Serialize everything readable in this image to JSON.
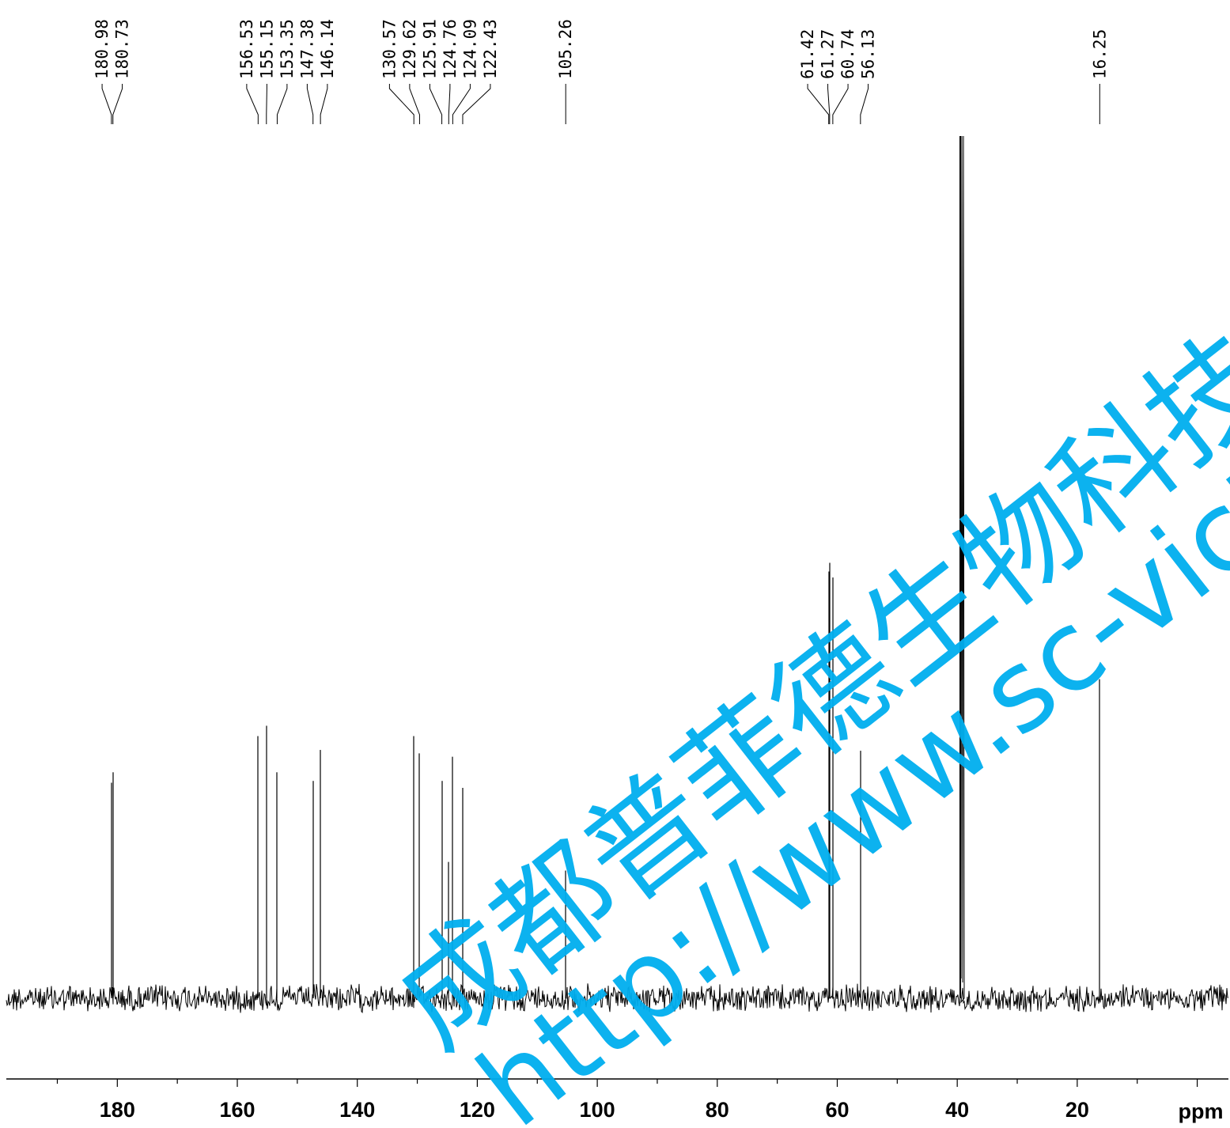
{
  "chart_data": {
    "type": "line",
    "title": "",
    "xlabel": "ppm",
    "ylabel": "",
    "xlim": [
      198.5,
      -5.2
    ],
    "x_major_ticks": [
      180,
      160,
      140,
      120,
      100,
      80,
      60,
      40,
      20
    ],
    "x_minor_step": 10,
    "grid": false,
    "peak_labels": [
      "180.98",
      "180.73",
      "156.53",
      "155.15",
      "153.35",
      "147.38",
      "146.14",
      "130.57",
      "129.62",
      "125.91",
      "124.76",
      "124.09",
      "122.43",
      "105.26",
      "61.42",
      "61.27",
      "60.74",
      "56.13",
      "16.25"
    ],
    "series": [
      {
        "peaks": [
          {
            "x": 180.98,
            "height": 0.25
          },
          {
            "x": 180.73,
            "height": 0.262
          },
          {
            "x": 156.53,
            "height": 0.304
          },
          {
            "x": 155.15,
            "height": 0.316
          },
          {
            "x": 153.35,
            "height": 0.262
          },
          {
            "x": 147.38,
            "height": 0.252
          },
          {
            "x": 146.14,
            "height": 0.288
          },
          {
            "x": 130.57,
            "height": 0.304
          },
          {
            "x": 129.62,
            "height": 0.284
          },
          {
            "x": 125.91,
            "height": 0.252
          },
          {
            "x": 124.76,
            "height": 0.158
          },
          {
            "x": 124.09,
            "height": 0.28
          },
          {
            "x": 122.43,
            "height": 0.244
          },
          {
            "x": 105.26,
            "height": 0.148
          },
          {
            "x": 61.42,
            "height": 0.495
          },
          {
            "x": 61.27,
            "height": 0.505
          },
          {
            "x": 60.74,
            "height": 0.488
          },
          {
            "x": 56.13,
            "height": 0.287
          },
          {
            "x": 39.52,
            "height": 1.0
          },
          {
            "x": 16.25,
            "height": 0.37
          }
        ]
      }
    ]
  },
  "watermark": {
    "line1": "成都普菲德生物科技有限公",
    "line2": "http://www.sc-victory",
    "color": "#00aeef"
  }
}
